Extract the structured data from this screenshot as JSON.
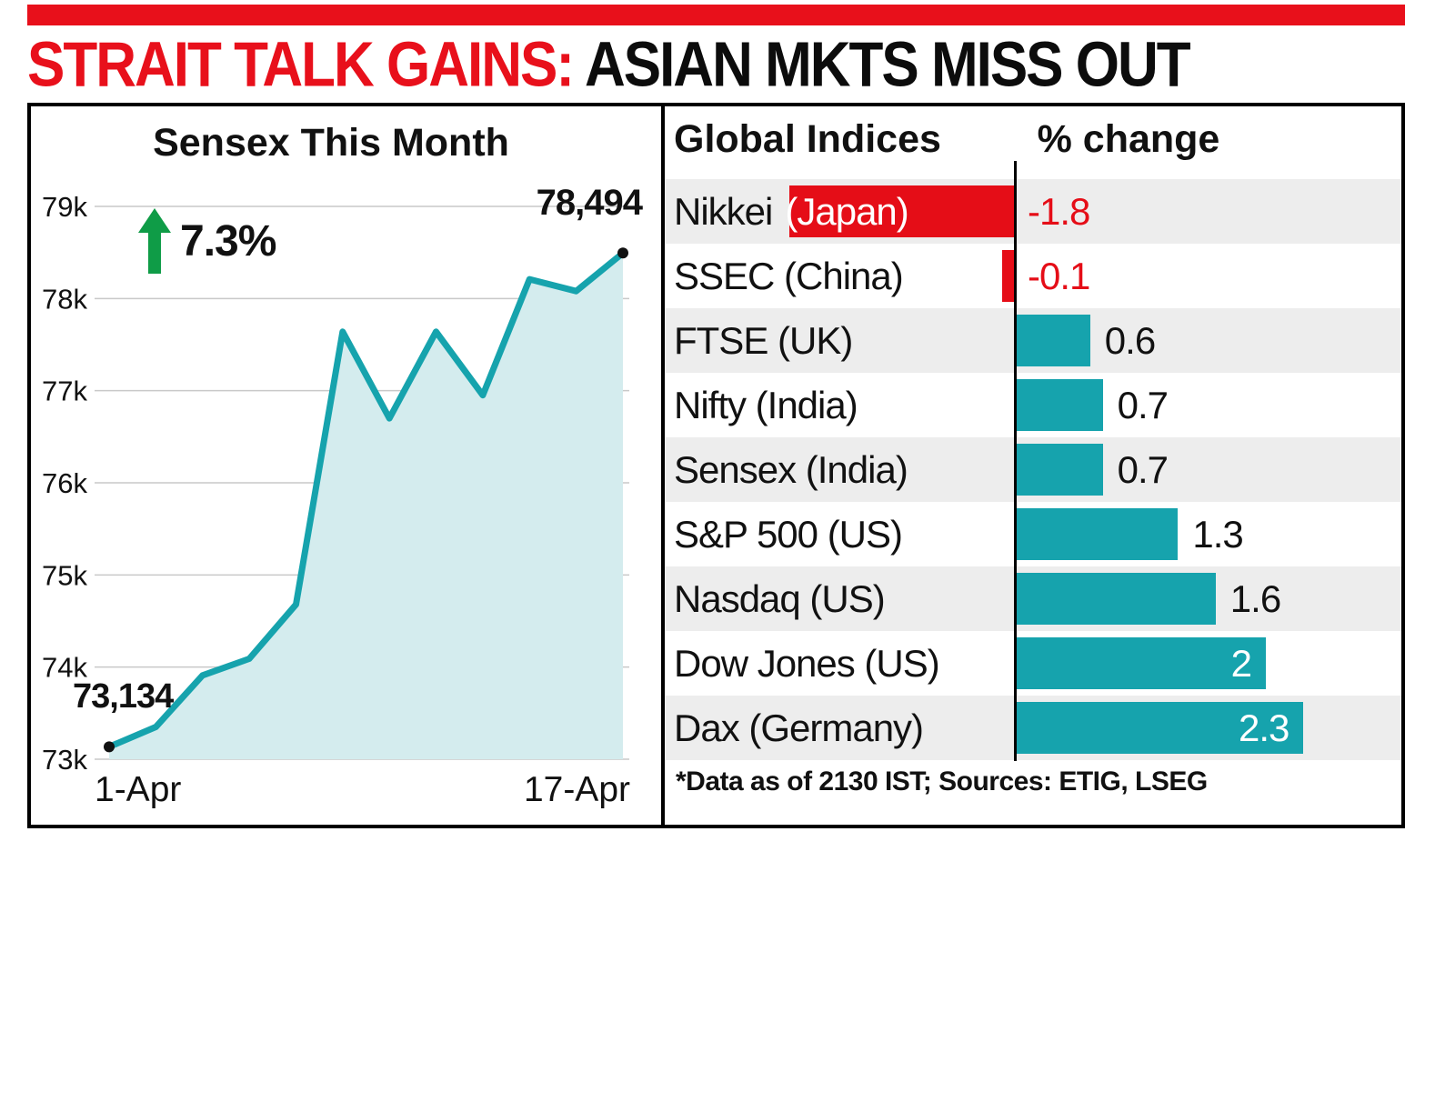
{
  "headline": {
    "red": "STRAIT TALK GAINS:",
    "black": " ASIAN MKTS MISS OUT"
  },
  "colors": {
    "accent_red": "#e8101b",
    "teal": "#16a3ad",
    "light_teal_fill": "#d4ecee",
    "green_arrow": "#0f9c47",
    "stripe_gray": "#ededed",
    "grid_gray": "#c9c9c9",
    "text_black": "#111111"
  },
  "chart_data": [
    {
      "type": "line",
      "title": "Sensex This Month",
      "change_pct": "7.3%",
      "start_label": "73,134",
      "end_label": "78,494",
      "start_value": 73134,
      "end_value": 78494,
      "values": [
        73134,
        73350,
        73910,
        74090,
        74680,
        77640,
        76700,
        77640,
        76950,
        78210,
        78080,
        78494
      ],
      "xlabels": [
        "1-Apr",
        "17-Apr"
      ],
      "yticks": [
        {
          "label": "79k",
          "value": 79000
        },
        {
          "label": "78k",
          "value": 78000
        },
        {
          "label": "77k",
          "value": 77000
        },
        {
          "label": "76k",
          "value": 76000
        },
        {
          "label": "75k",
          "value": 75000
        },
        {
          "label": "74k",
          "value": 74000
        },
        {
          "label": "73k",
          "value": 73000
        }
      ],
      "ylim": [
        73000,
        79000
      ],
      "grid": true,
      "line_color": "#16a3ad",
      "fill_color": "#d4ecee"
    },
    {
      "type": "bar",
      "title": "Global Indices",
      "value_header": "% change",
      "footnote": "*Data as of 2130 IST; Sources: ETIG, LSEG",
      "positive_color": "#16a3ad",
      "negative_color": "#e50d17",
      "rows": [
        {
          "label": "Nikkei",
          "label_on_bar": "(Japan)",
          "value": -1.8,
          "display": "-1.8"
        },
        {
          "label": "SSEC (China)",
          "label_on_bar": "",
          "value": -0.1,
          "display": "-0.1"
        },
        {
          "label": "FTSE (UK)",
          "label_on_bar": "",
          "value": 0.6,
          "display": "0.6"
        },
        {
          "label": "Nifty (India)",
          "label_on_bar": "",
          "value": 0.7,
          "display": "0.7"
        },
        {
          "label": "Sensex (India)",
          "label_on_bar": "",
          "value": 0.7,
          "display": "0.7"
        },
        {
          "label": "S&P 500 (US)",
          "label_on_bar": "",
          "value": 1.3,
          "display": "1.3"
        },
        {
          "label": "Nasdaq (US)",
          "label_on_bar": "",
          "value": 1.6,
          "display": "1.6"
        },
        {
          "label": "Dow Jones (US)",
          "label_on_bar": "",
          "value": 2,
          "display": "2",
          "value_inside": true
        },
        {
          "label": "Dax (Germany)",
          "label_on_bar": "",
          "value": 2.3,
          "display": "2.3",
          "value_inside": true
        }
      ]
    }
  ]
}
